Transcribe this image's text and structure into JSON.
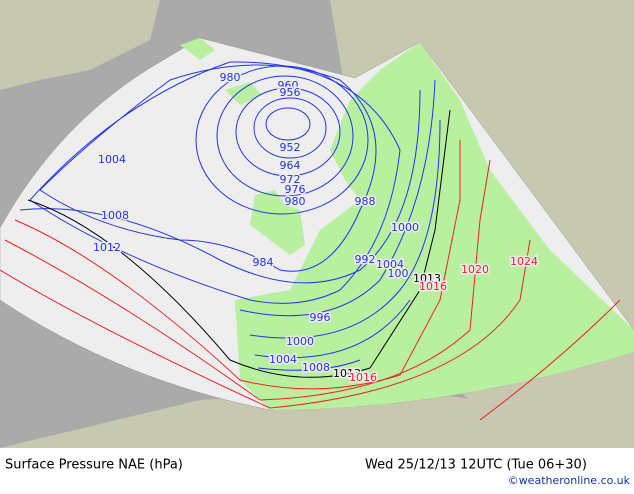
{
  "map": {
    "isobar_labels": [
      980,
      960,
      956,
      952,
      964,
      972,
      976,
      980,
      1004,
      1008,
      1012,
      984,
      988,
      1000,
      992,
      1004,
      100,
      1013,
      1016,
      1020,
      1024,
      996,
      1000,
      1004,
      1008,
      1013,
      1016
    ]
  },
  "footer": {
    "title": "Surface Pressure NAE (hPa)",
    "datetime": "Wed 25/12/13 12UTC  (Tue 06+30)",
    "credit": "©weatheronline.co.uk"
  }
}
